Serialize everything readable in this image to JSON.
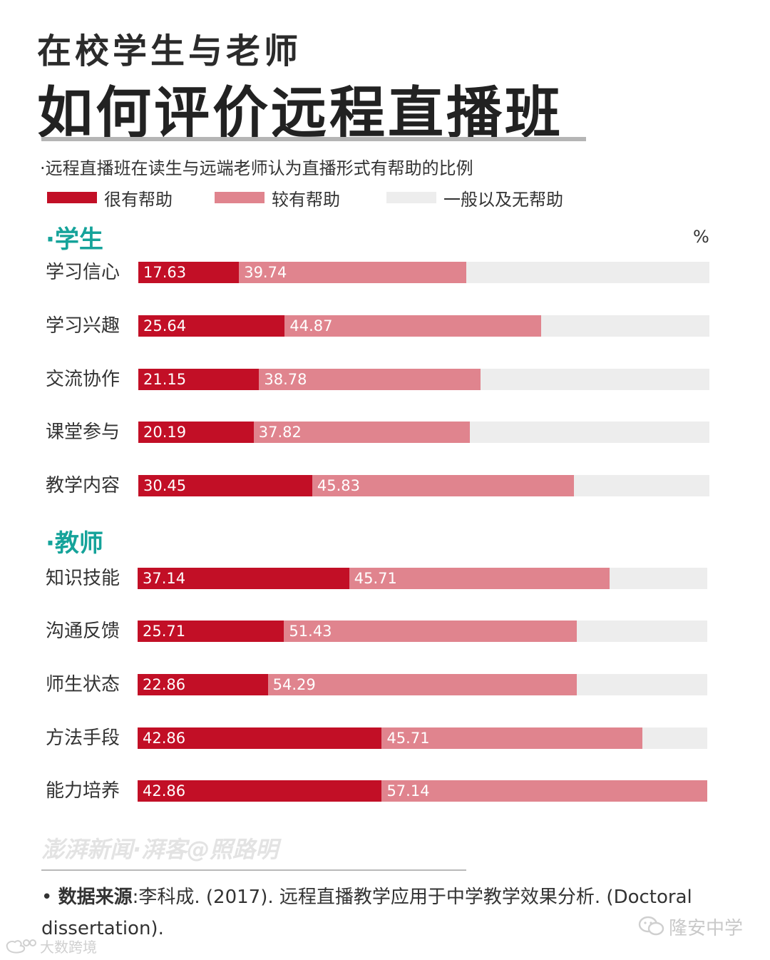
{
  "header": {
    "title_line1": "在校学生与老师",
    "title_line2": "如何评价远程直播班"
  },
  "chart_data": {
    "type": "bar",
    "stacked": true,
    "orientation": "horizontal",
    "title": "·远程直播班在读生与远端老师认为直播形式有帮助的比例",
    "unit": "%",
    "xlim": [
      0,
      100
    ],
    "legend": [
      {
        "name": "很有帮助",
        "color": "#c20f26"
      },
      {
        "name": "较有帮助",
        "color": "#e0848e"
      },
      {
        "name": "一般以及无帮助",
        "color": "#ededed"
      }
    ],
    "groups": [
      {
        "name": "·学生",
        "categories": [
          "学习信心",
          "学习兴趣",
          "交流协作",
          "课堂参与",
          "教学内容"
        ],
        "series": [
          {
            "name": "很有帮助",
            "values": [
              17.63,
              25.64,
              21.15,
              20.19,
              30.45
            ]
          },
          {
            "name": "较有帮助",
            "values": [
              39.74,
              44.87,
              38.78,
              37.82,
              45.83
            ]
          }
        ]
      },
      {
        "name": "·教师",
        "categories": [
          "知识技能",
          "沟通反馈",
          "师生状态",
          "方法手段",
          "能力培养"
        ],
        "series": [
          {
            "name": "很有帮助",
            "values": [
              37.14,
              25.71,
              22.86,
              42.86,
              42.86
            ]
          },
          {
            "name": "较有帮助",
            "values": [
              45.71,
              51.43,
              54.29,
              45.71,
              57.14
            ]
          }
        ]
      }
    ]
  },
  "watermark": "澎湃新闻·湃客@照路明",
  "source": {
    "label": "数据来源",
    "text": ":李科成. (2017). 远程直播教学应用于中学教学效果分析. (Doctoral dissertation)."
  },
  "brand_right": "隆安中学",
  "brand_left": "大数跨境"
}
